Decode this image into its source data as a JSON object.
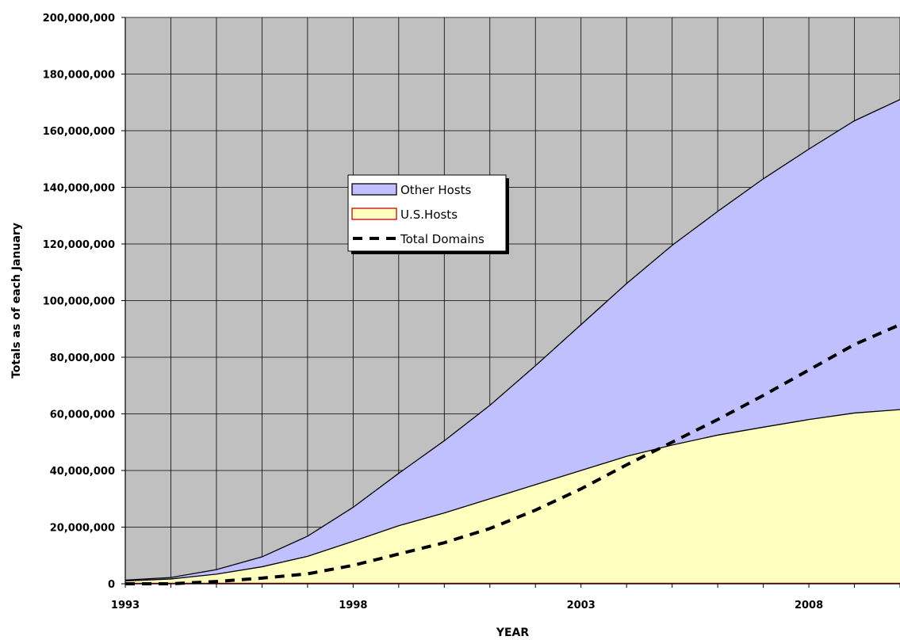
{
  "chart_data": {
    "type": "area",
    "xlabel": "YEAR",
    "ylabel": "Totals as of each January",
    "xlim": [
      1993,
      2010
    ],
    "ylim": [
      0,
      200000000
    ],
    "x_ticks": [
      1993,
      1998,
      2003,
      2008
    ],
    "y_ticks": [
      0,
      20000000,
      40000000,
      60000000,
      80000000,
      100000000,
      120000000,
      140000000,
      160000000,
      180000000,
      200000000
    ],
    "y_tick_labels": [
      "0",
      "20,000,000",
      "40,000,000",
      "60,000,000",
      "80,000,000",
      "100,000,000",
      "120,000,000",
      "140,000,000",
      "160,000,000",
      "180,000,000",
      "200,000,000"
    ],
    "x_tick_labels": [
      "1993",
      "1998",
      "2003",
      "2008"
    ],
    "grid": true,
    "stacked": true,
    "legend_position": "center-left",
    "x": [
      1993,
      1994,
      1995,
      1996,
      1997,
      1998,
      1999,
      2000,
      2001,
      2002,
      2003,
      2004,
      2005,
      2006,
      2007,
      2008,
      2009,
      2010
    ],
    "series": [
      {
        "name": "U.S.Hosts",
        "kind": "area",
        "color": "#ffffc0",
        "edge": "#cc0000",
        "values": [
          1000000,
          1700000,
          3400000,
          6000000,
          9700000,
          15000000,
          20500000,
          25000000,
          30000000,
          35000000,
          40000000,
          45000000,
          49000000,
          52500000,
          55300000,
          58000000,
          60300000,
          61500000
        ]
      },
      {
        "name": "Other Hosts",
        "kind": "area",
        "color": "#c0c0ff",
        "edge": "#000000",
        "totals": [
          1300000,
          2200000,
          5000000,
          9500000,
          16800000,
          27000000,
          39000000,
          50500000,
          63000000,
          77000000,
          91500000,
          106000000,
          119500000,
          131500000,
          143000000,
          153500000,
          163500000,
          171000000
        ]
      },
      {
        "name": "Total Domains",
        "kind": "dashed-line",
        "color": "#000000",
        "values": [
          0,
          0,
          800000,
          2000000,
          3500000,
          6500000,
          10500000,
          14500000,
          19500000,
          26000000,
          33500000,
          42000000,
          50000000,
          58000000,
          66500000,
          75500000,
          84500000,
          91500000
        ]
      }
    ],
    "colors": {
      "plot_bg": "#c0c0c0",
      "grid": "#000000"
    }
  }
}
